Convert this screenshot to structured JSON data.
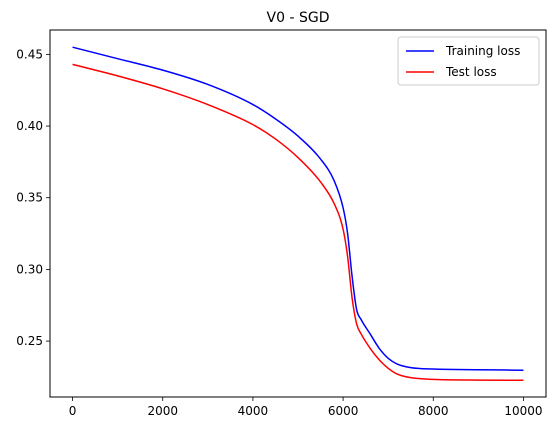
{
  "chart_data": {
    "type": "line",
    "title": "V0 - SGD",
    "xlabel": "",
    "ylabel": "",
    "xlim": [
      -500,
      10500
    ],
    "ylim": [
      0.211,
      0.467
    ],
    "xticks": [
      0,
      2000,
      4000,
      6000,
      8000,
      10000
    ],
    "xtick_labels": [
      "0",
      "2000",
      "4000",
      "6000",
      "8000",
      "10000"
    ],
    "yticks": [
      0.25,
      0.3,
      0.35,
      0.4,
      0.45
    ],
    "ytick_labels": [
      "0.25",
      "0.30",
      "0.35",
      "0.40",
      "0.45"
    ],
    "grid": false,
    "legend": "top-right",
    "series": [
      {
        "name": "Training loss",
        "color": "#0000ff",
        "x": [
          0,
          1000,
          2000,
          3000,
          4000,
          4500,
          5000,
          5500,
          5800,
          6000,
          6100,
          6200,
          6300,
          6400,
          6600,
          6800,
          7000,
          7200,
          7500,
          8000,
          9000,
          10000
        ],
        "y": [
          0.455,
          0.447,
          0.439,
          0.429,
          0.415,
          0.405,
          0.393,
          0.377,
          0.362,
          0.343,
          0.325,
          0.295,
          0.272,
          0.265,
          0.255,
          0.245,
          0.238,
          0.234,
          0.2315,
          0.2305,
          0.23,
          0.2297
        ]
      },
      {
        "name": "Test loss",
        "color": "#ff0000",
        "x": [
          0,
          1000,
          2000,
          3000,
          4000,
          4500,
          5000,
          5500,
          5800,
          6000,
          6100,
          6200,
          6300,
          6400,
          6600,
          6800,
          7000,
          7200,
          7500,
          8000,
          9000,
          10000
        ],
        "y": [
          0.443,
          0.435,
          0.426,
          0.415,
          0.401,
          0.391,
          0.378,
          0.361,
          0.346,
          0.328,
          0.309,
          0.28,
          0.262,
          0.255,
          0.245,
          0.237,
          0.231,
          0.227,
          0.2245,
          0.2233,
          0.2228,
          0.2227
        ]
      }
    ]
  }
}
